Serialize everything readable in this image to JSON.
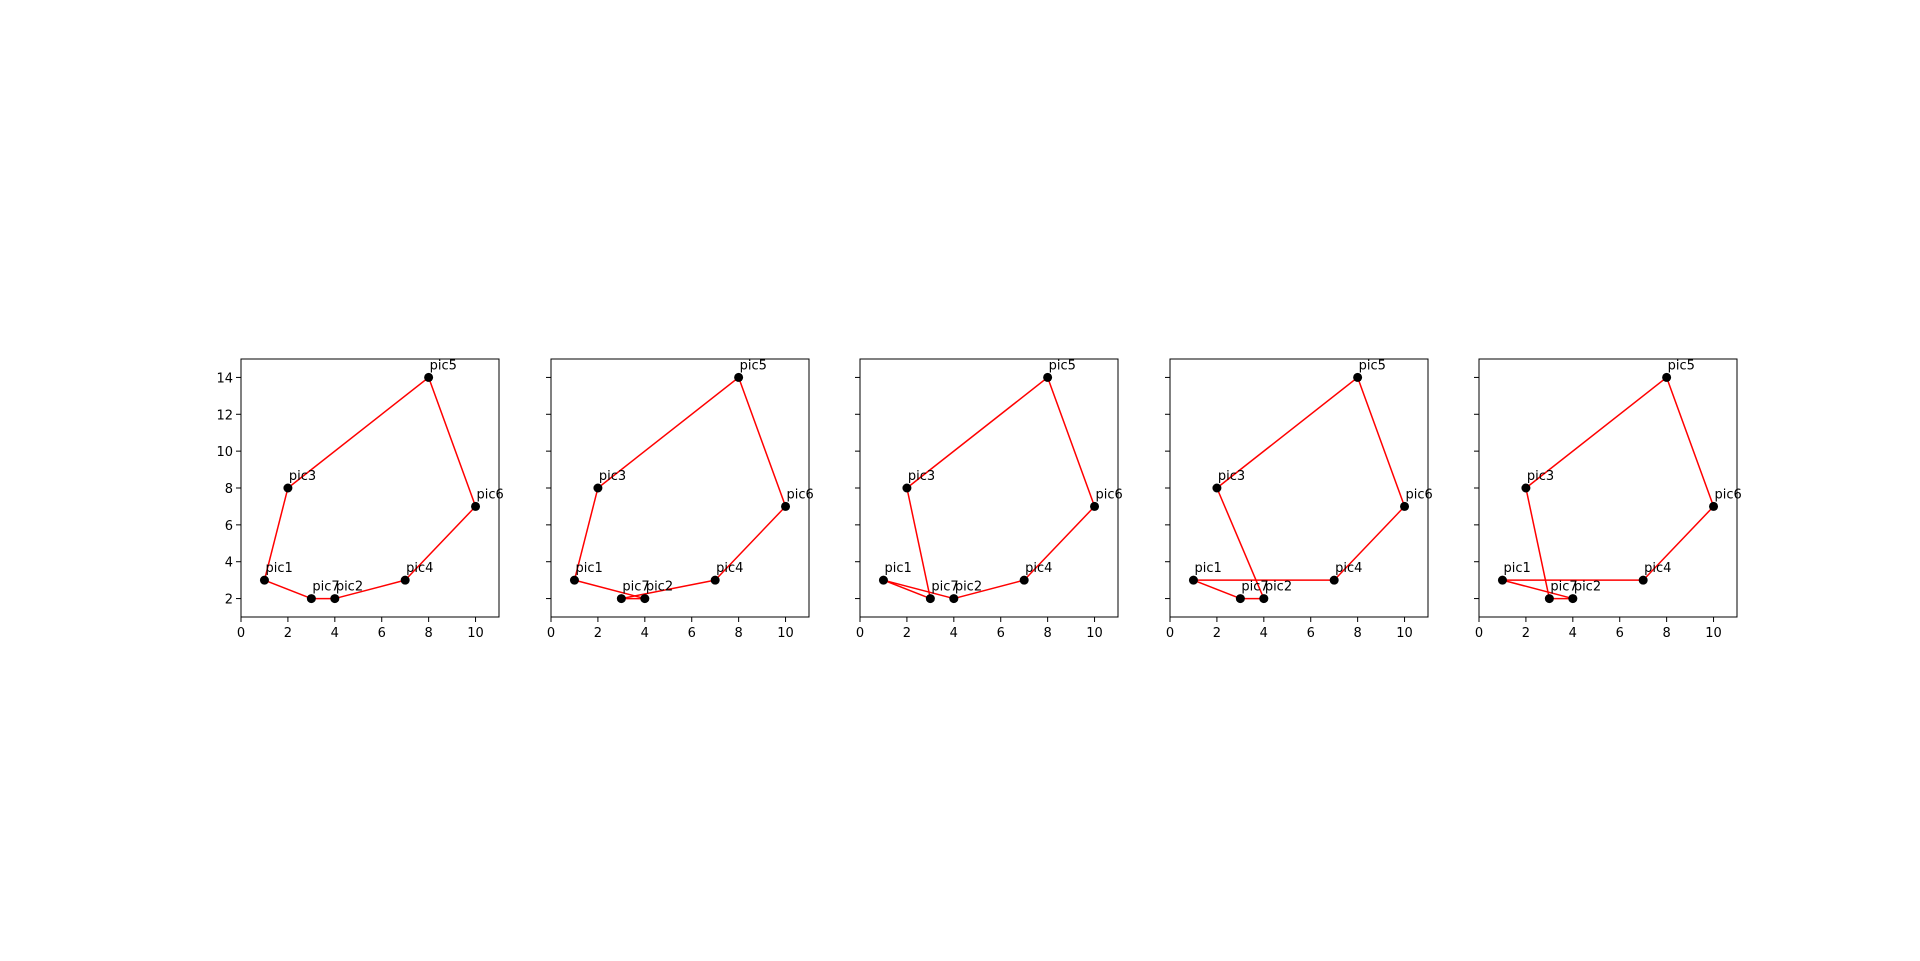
{
  "chart_data": [
    {
      "type": "scatter",
      "points": [
        {
          "label": "pic1",
          "x": 1,
          "y": 3
        },
        {
          "label": "pic2",
          "x": 4,
          "y": 2
        },
        {
          "label": "pic3",
          "x": 2,
          "y": 8
        },
        {
          "label": "pic4",
          "x": 7,
          "y": 3
        },
        {
          "label": "pic5",
          "x": 8,
          "y": 14
        },
        {
          "label": "pic6",
          "x": 10,
          "y": 7
        },
        {
          "label": "pic7",
          "x": 3,
          "y": 2
        }
      ],
      "path": [
        "pic1",
        "pic7",
        "pic2",
        "pic4",
        "pic6",
        "pic5",
        "pic3",
        "pic1"
      ],
      "xticks": [
        0,
        2,
        4,
        6,
        8,
        10
      ],
      "yticks": [
        2,
        4,
        6,
        8,
        10,
        12,
        14
      ],
      "xlim": [
        0,
        11
      ],
      "ylim": [
        1,
        15
      ],
      "show_ytick_labels": true
    },
    {
      "type": "scatter",
      "points": [
        {
          "label": "pic1",
          "x": 1,
          "y": 3
        },
        {
          "label": "pic2",
          "x": 4,
          "y": 2
        },
        {
          "label": "pic3",
          "x": 2,
          "y": 8
        },
        {
          "label": "pic4",
          "x": 7,
          "y": 3
        },
        {
          "label": "pic5",
          "x": 8,
          "y": 14
        },
        {
          "label": "pic6",
          "x": 10,
          "y": 7
        },
        {
          "label": "pic7",
          "x": 3,
          "y": 2
        }
      ],
      "path": [
        "pic1",
        "pic2",
        "pic7",
        "pic4",
        "pic6",
        "pic5",
        "pic3",
        "pic1"
      ],
      "xticks": [
        0,
        2,
        4,
        6,
        8,
        10
      ],
      "yticks": [
        2,
        4,
        6,
        8,
        10,
        12,
        14
      ],
      "xlim": [
        0,
        11
      ],
      "ylim": [
        1,
        15
      ],
      "show_ytick_labels": false
    },
    {
      "type": "scatter",
      "points": [
        {
          "label": "pic1",
          "x": 1,
          "y": 3
        },
        {
          "label": "pic2",
          "x": 4,
          "y": 2
        },
        {
          "label": "pic3",
          "x": 2,
          "y": 8
        },
        {
          "label": "pic4",
          "x": 7,
          "y": 3
        },
        {
          "label": "pic5",
          "x": 8,
          "y": 14
        },
        {
          "label": "pic6",
          "x": 10,
          "y": 7
        },
        {
          "label": "pic7",
          "x": 3,
          "y": 2
        }
      ],
      "path": [
        "pic3",
        "pic7",
        "pic1",
        "pic2",
        "pic4",
        "pic6",
        "pic5",
        "pic3"
      ],
      "xticks": [
        0,
        2,
        4,
        6,
        8,
        10
      ],
      "yticks": [
        2,
        4,
        6,
        8,
        10,
        12,
        14
      ],
      "xlim": [
        0,
        11
      ],
      "ylim": [
        1,
        15
      ],
      "show_ytick_labels": false
    },
    {
      "type": "scatter",
      "points": [
        {
          "label": "pic1",
          "x": 1,
          "y": 3
        },
        {
          "label": "pic2",
          "x": 4,
          "y": 2
        },
        {
          "label": "pic3",
          "x": 2,
          "y": 8
        },
        {
          "label": "pic4",
          "x": 7,
          "y": 3
        },
        {
          "label": "pic5",
          "x": 8,
          "y": 14
        },
        {
          "label": "pic6",
          "x": 10,
          "y": 7
        },
        {
          "label": "pic7",
          "x": 3,
          "y": 2
        }
      ],
      "path": [
        "pic1",
        "pic4",
        "pic6",
        "pic5",
        "pic3",
        "pic2",
        "pic7",
        "pic1"
      ],
      "xticks": [
        0,
        2,
        4,
        6,
        8,
        10
      ],
      "yticks": [
        2,
        4,
        6,
        8,
        10,
        12,
        14
      ],
      "xlim": [
        0,
        11
      ],
      "ylim": [
        1,
        15
      ],
      "show_ytick_labels": false
    },
    {
      "type": "scatter",
      "points": [
        {
          "label": "pic1",
          "x": 1,
          "y": 3
        },
        {
          "label": "pic2",
          "x": 4,
          "y": 2
        },
        {
          "label": "pic3",
          "x": 2,
          "y": 8
        },
        {
          "label": "pic4",
          "x": 7,
          "y": 3
        },
        {
          "label": "pic5",
          "x": 8,
          "y": 14
        },
        {
          "label": "pic6",
          "x": 10,
          "y": 7
        },
        {
          "label": "pic7",
          "x": 3,
          "y": 2
        }
      ],
      "path": [
        "pic1",
        "pic4",
        "pic6",
        "pic5",
        "pic3",
        "pic7",
        "pic2",
        "pic1"
      ],
      "xticks": [
        0,
        2,
        4,
        6,
        8,
        10
      ],
      "yticks": [
        2,
        4,
        6,
        8,
        10,
        12,
        14
      ],
      "xlim": [
        0,
        11
      ],
      "ylim": [
        1,
        15
      ],
      "show_ytick_labels": false
    }
  ],
  "colors": {
    "route_line": "#ff0000",
    "marker": "#000000",
    "axes": "#000000",
    "background": "#ffffff"
  }
}
